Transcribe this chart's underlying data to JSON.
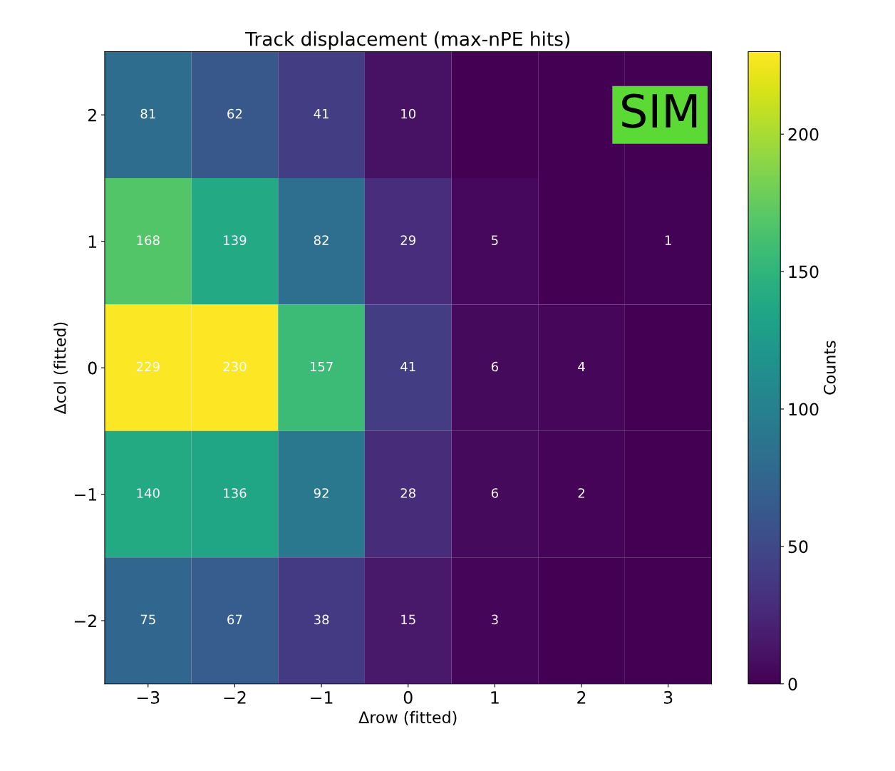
{
  "chart_data": {
    "type": "heatmap",
    "title": "Track displacement (max-nPE hits)",
    "xlabel": "Δrow (fitted)",
    "ylabel": "Δcol (fitted)",
    "clabel": "Counts",
    "categories": [
      "−3",
      "−2",
      "−1",
      "0",
      "1",
      "2",
      "3"
    ],
    "y_categories": [
      "2",
      "1",
      "0",
      "−1",
      "−2"
    ],
    "cells": [
      [
        81,
        62,
        41,
        10,
        0,
        0,
        0
      ],
      [
        168,
        139,
        82,
        29,
        5,
        0,
        1
      ],
      [
        229,
        230,
        157,
        41,
        6,
        4,
        0
      ],
      [
        140,
        136,
        92,
        28,
        6,
        2,
        0
      ],
      [
        75,
        67,
        38,
        15,
        3,
        0,
        0
      ]
    ],
    "cell_labels": [
      [
        "81",
        "62",
        "41",
        "10",
        null,
        null,
        null
      ],
      [
        "168",
        "139",
        "82",
        "29",
        "5",
        null,
        "1"
      ],
      [
        "229",
        "230",
        "157",
        "41",
        "6",
        "4",
        null
      ],
      [
        "140",
        "136",
        "92",
        "28",
        "6",
        "2",
        null
      ],
      [
        "75",
        "67",
        "38",
        "15",
        "3",
        null,
        null
      ]
    ],
    "clim": [
      0,
      230
    ],
    "cticks": [
      0,
      50,
      100,
      150,
      200
    ],
    "annotations": [
      "SIM"
    ]
  }
}
